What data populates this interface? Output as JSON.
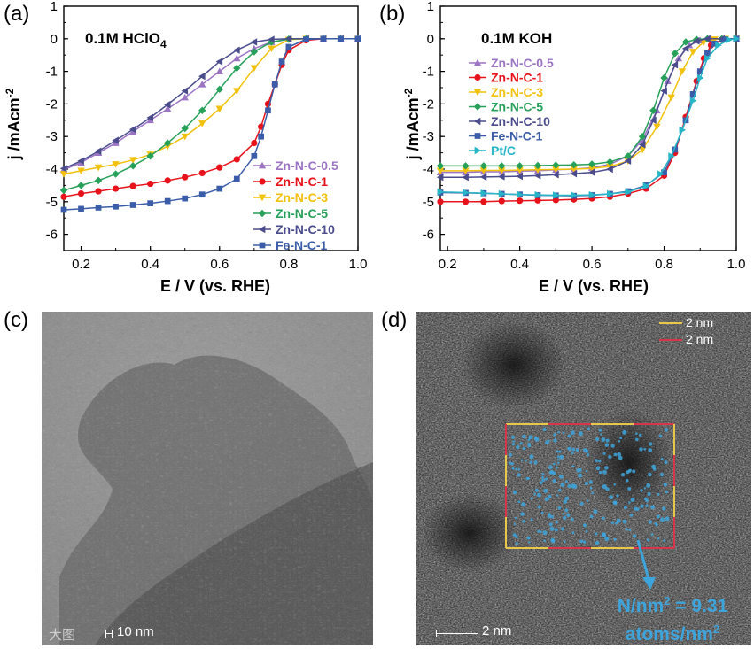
{
  "panels": {
    "a": "(a)",
    "b": "(b)",
    "c": "(c)",
    "d": "(d)"
  },
  "chart_data": [
    {
      "type": "line",
      "panel": "a",
      "condition_main": "0.1M HClO",
      "condition_sub": "4",
      "xlabel": "E / V (vs. RHE)",
      "ylabel_main": "j /mAcm",
      "ylabel_sup": "-2",
      "xlim": [
        0.15,
        1.0
      ],
      "ylim": [
        -6.5,
        1.0
      ],
      "xticks": [
        "0.2",
        "0.4",
        "0.6",
        "0.8",
        "1.0"
      ],
      "xtick_values": [
        0.2,
        0.4,
        0.6,
        0.8,
        1.0
      ],
      "yticks": [
        "1",
        "0",
        "-1",
        "-2",
        "-3",
        "-4",
        "-5",
        "-6"
      ],
      "ytick_values": [
        1,
        0,
        -1,
        -2,
        -3,
        -4,
        -5,
        -6
      ],
      "series": [
        {
          "name": "Zn-N-C-0.5",
          "color": "#9b74c4",
          "marker": "triangle-up",
          "x": [
            0.15,
            0.2,
            0.25,
            0.3,
            0.35,
            0.4,
            0.45,
            0.5,
            0.55,
            0.6,
            0.65,
            0.7,
            0.75,
            0.8,
            0.85,
            0.9,
            0.95,
            1.0
          ],
          "y": [
            -4.02,
            -3.8,
            -3.5,
            -3.2,
            -2.85,
            -2.5,
            -2.15,
            -1.8,
            -1.4,
            -1.0,
            -0.6,
            -0.3,
            -0.1,
            -0.02,
            0,
            0,
            0,
            0
          ]
        },
        {
          "name": "Zn-N-C-1",
          "color": "#e8121b",
          "marker": "circle",
          "x": [
            0.15,
            0.2,
            0.25,
            0.3,
            0.35,
            0.4,
            0.45,
            0.5,
            0.55,
            0.6,
            0.65,
            0.7,
            0.72,
            0.74,
            0.76,
            0.78,
            0.8,
            0.85,
            0.9,
            0.95,
            1.0
          ],
          "y": [
            -4.85,
            -4.75,
            -4.68,
            -4.6,
            -4.52,
            -4.45,
            -4.35,
            -4.25,
            -4.12,
            -3.95,
            -3.7,
            -3.2,
            -2.7,
            -2.0,
            -1.4,
            -0.8,
            -0.35,
            -0.05,
            0,
            0,
            0
          ]
        },
        {
          "name": "Zn-N-C-3",
          "color": "#f2c10c",
          "marker": "triangle-down",
          "x": [
            0.15,
            0.2,
            0.25,
            0.3,
            0.35,
            0.4,
            0.45,
            0.5,
            0.55,
            0.6,
            0.65,
            0.7,
            0.75,
            0.8,
            0.85,
            0.9,
            0.95,
            1.0
          ],
          "y": [
            -4.15,
            -4.05,
            -3.95,
            -3.85,
            -3.72,
            -3.55,
            -3.3,
            -3.0,
            -2.6,
            -2.15,
            -1.6,
            -0.9,
            -0.3,
            -0.03,
            0,
            0,
            0,
            0
          ]
        },
        {
          "name": "Zn-N-C-5",
          "color": "#27a05a",
          "marker": "diamond",
          "x": [
            0.15,
            0.2,
            0.25,
            0.3,
            0.35,
            0.4,
            0.45,
            0.5,
            0.55,
            0.6,
            0.65,
            0.7,
            0.75,
            0.8,
            0.85,
            0.9,
            0.95,
            1.0
          ],
          "y": [
            -4.65,
            -4.5,
            -4.35,
            -4.15,
            -3.9,
            -3.6,
            -3.2,
            -2.75,
            -2.2,
            -1.55,
            -0.9,
            -0.4,
            -0.1,
            -0.01,
            0,
            0,
            0,
            0
          ]
        },
        {
          "name": "Zn-N-C-10",
          "color": "#4a4c8c",
          "marker": "triangle-left",
          "x": [
            0.15,
            0.2,
            0.25,
            0.3,
            0.35,
            0.4,
            0.45,
            0.5,
            0.55,
            0.6,
            0.65,
            0.7,
            0.75,
            0.8,
            0.85,
            0.9,
            0.95,
            1.0
          ],
          "y": [
            -3.98,
            -3.75,
            -3.45,
            -3.12,
            -2.78,
            -2.42,
            -2.02,
            -1.6,
            -1.15,
            -0.7,
            -0.35,
            -0.1,
            -0.02,
            0,
            0,
            0,
            0,
            0
          ]
        },
        {
          "name": "Fe-N-C-1",
          "color": "#3b5ca8",
          "marker": "square",
          "x": [
            0.15,
            0.2,
            0.25,
            0.3,
            0.35,
            0.4,
            0.45,
            0.5,
            0.55,
            0.6,
            0.65,
            0.7,
            0.72,
            0.74,
            0.76,
            0.78,
            0.8,
            0.85,
            0.9,
            0.95,
            1.0
          ],
          "y": [
            -5.25,
            -5.22,
            -5.18,
            -5.15,
            -5.1,
            -5.05,
            -4.98,
            -4.9,
            -4.78,
            -4.6,
            -4.3,
            -3.6,
            -3.0,
            -2.2,
            -1.4,
            -0.7,
            -0.25,
            -0.02,
            0,
            0,
            0
          ]
        }
      ]
    },
    {
      "type": "line",
      "panel": "b",
      "condition_main": "0.1M KOH",
      "condition_sub": "",
      "xlabel": "E / V (vs. RHE)",
      "ylabel_main": "j /mAcm",
      "ylabel_sup": "-2",
      "xlim": [
        0.18,
        1.0
      ],
      "ylim": [
        -6.5,
        1.0
      ],
      "xticks": [
        "0.2",
        "0.4",
        "0.6",
        "0.8",
        "1.0"
      ],
      "xtick_values": [
        0.2,
        0.4,
        0.6,
        0.8,
        1.0
      ],
      "yticks": [
        "1",
        "0",
        "-1",
        "-2",
        "-3",
        "-4",
        "-5",
        "-6"
      ],
      "ytick_values": [
        1,
        0,
        -1,
        -2,
        -3,
        -4,
        -5,
        -6
      ],
      "series": [
        {
          "name": "Zn-N-C-0.5",
          "color": "#9b74c4",
          "marker": "triangle-up",
          "x": [
            0.18,
            0.25,
            0.3,
            0.35,
            0.4,
            0.45,
            0.5,
            0.55,
            0.6,
            0.65,
            0.7,
            0.74,
            0.78,
            0.81,
            0.84,
            0.87,
            0.9,
            0.93,
            0.96,
            1.0
          ],
          "y": [
            -4.1,
            -4.1,
            -4.08,
            -4.08,
            -4.06,
            -4.05,
            -4.02,
            -4.0,
            -3.96,
            -3.85,
            -3.6,
            -3.1,
            -2.2,
            -1.3,
            -0.6,
            -0.2,
            -0.05,
            0,
            0,
            0
          ]
        },
        {
          "name": "Zn-N-C-1",
          "color": "#e8121b",
          "marker": "circle",
          "x": [
            0.18,
            0.25,
            0.3,
            0.35,
            0.4,
            0.45,
            0.5,
            0.55,
            0.6,
            0.65,
            0.7,
            0.75,
            0.8,
            0.83,
            0.86,
            0.89,
            0.91,
            0.93,
            0.96,
            1.0
          ],
          "y": [
            -5.0,
            -5.0,
            -5.0,
            -4.98,
            -4.97,
            -4.96,
            -4.95,
            -4.93,
            -4.9,
            -4.85,
            -4.75,
            -4.6,
            -4.2,
            -3.5,
            -2.4,
            -1.3,
            -0.6,
            -0.2,
            -0.03,
            0
          ]
        },
        {
          "name": "Zn-N-C-3",
          "color": "#f2c10c",
          "marker": "triangle-down",
          "x": [
            0.18,
            0.25,
            0.3,
            0.35,
            0.4,
            0.45,
            0.5,
            0.55,
            0.6,
            0.65,
            0.7,
            0.74,
            0.78,
            0.82,
            0.85,
            0.88,
            0.91,
            0.94,
            0.97,
            1.0
          ],
          "y": [
            -4.05,
            -4.05,
            -4.04,
            -4.04,
            -4.03,
            -4.02,
            -4.01,
            -4.0,
            -3.98,
            -3.92,
            -3.75,
            -3.4,
            -2.7,
            -1.8,
            -1.0,
            -0.4,
            -0.1,
            -0.02,
            0,
            0
          ]
        },
        {
          "name": "Zn-N-C-5",
          "color": "#27a05a",
          "marker": "diamond",
          "x": [
            0.18,
            0.25,
            0.3,
            0.35,
            0.4,
            0.45,
            0.5,
            0.55,
            0.6,
            0.65,
            0.7,
            0.74,
            0.77,
            0.8,
            0.83,
            0.86,
            0.89,
            0.92,
            0.96,
            1.0
          ],
          "y": [
            -3.9,
            -3.9,
            -3.9,
            -3.9,
            -3.9,
            -3.89,
            -3.88,
            -3.87,
            -3.85,
            -3.78,
            -3.6,
            -3.0,
            -2.2,
            -1.2,
            -0.45,
            -0.1,
            -0.02,
            0,
            0,
            0
          ]
        },
        {
          "name": "Zn-N-C-10",
          "color": "#4a4c8c",
          "marker": "triangle-left",
          "x": [
            0.18,
            0.25,
            0.3,
            0.35,
            0.4,
            0.45,
            0.5,
            0.55,
            0.6,
            0.65,
            0.7,
            0.74,
            0.77,
            0.8,
            0.83,
            0.86,
            0.89,
            0.92,
            0.96,
            1.0
          ],
          "y": [
            -4.25,
            -4.25,
            -4.24,
            -4.23,
            -4.22,
            -4.2,
            -4.17,
            -4.14,
            -4.1,
            -4.0,
            -3.75,
            -3.25,
            -2.5,
            -1.6,
            -0.8,
            -0.3,
            -0.07,
            0,
            0,
            0
          ]
        },
        {
          "name": "Fe-N-C-1",
          "color": "#3b5ca8",
          "marker": "square",
          "x": [
            0.18,
            0.25,
            0.3,
            0.35,
            0.4,
            0.45,
            0.5,
            0.55,
            0.6,
            0.65,
            0.7,
            0.75,
            0.8,
            0.83,
            0.86,
            0.88,
            0.9,
            0.92,
            0.94,
            0.97,
            1.0
          ],
          "y": [
            -4.72,
            -4.73,
            -4.74,
            -4.76,
            -4.78,
            -4.8,
            -4.81,
            -4.82,
            -4.8,
            -4.76,
            -4.68,
            -4.5,
            -4.1,
            -3.4,
            -2.5,
            -1.7,
            -1.0,
            -0.45,
            -0.15,
            -0.02,
            0
          ]
        },
        {
          "name": "Pt/C",
          "color": "#27b5c8",
          "marker": "triangle-right",
          "x": [
            0.18,
            0.25,
            0.3,
            0.35,
            0.4,
            0.45,
            0.5,
            0.55,
            0.6,
            0.65,
            0.7,
            0.75,
            0.79,
            0.82,
            0.85,
            0.88,
            0.9,
            0.92,
            0.95,
            0.98,
            1.0
          ],
          "y": [
            -4.7,
            -4.72,
            -4.74,
            -4.76,
            -4.78,
            -4.79,
            -4.8,
            -4.8,
            -4.79,
            -4.76,
            -4.7,
            -4.52,
            -4.15,
            -3.6,
            -2.8,
            -1.9,
            -1.2,
            -0.6,
            -0.2,
            -0.03,
            0
          ]
        }
      ]
    }
  ],
  "panel_c": {
    "scale_bar": "10 nm",
    "watermark": "大图"
  },
  "panel_d": {
    "legend": [
      "2 nm",
      "2 nm"
    ],
    "legend_colors": [
      "#e8c84a",
      "#d8344a"
    ],
    "scale_bar": "2 nm",
    "annotation_line1_main": "N/nm",
    "annotation_line1_sup": "2",
    "annotation_line1_rest": " = 9.31",
    "annotation_line2_main": "atoms/nm",
    "annotation_line2_sup": "2",
    "annotation_color": "#3ea4dc"
  }
}
